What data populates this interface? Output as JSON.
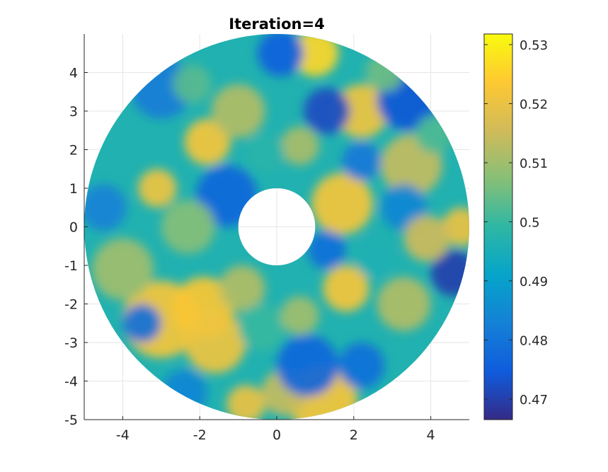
{
  "chart_data": {
    "type": "heatmap",
    "title": "Iteration=4",
    "xlabel": "",
    "ylabel": "",
    "xlim": [
      -5,
      5
    ],
    "ylim": [
      -5,
      5
    ],
    "xticks": [
      -4,
      -2,
      0,
      2,
      4
    ],
    "yticks": [
      4,
      3,
      2,
      1,
      0,
      -1,
      -2,
      -3,
      -4,
      -5
    ],
    "grid": true,
    "domain": {
      "shape": "annulus",
      "inner_radius": 1,
      "outer_radius": 5
    },
    "colorbar": {
      "clim": [
        0.4665,
        0.5318
      ],
      "ticks": [
        0.47,
        0.48,
        0.49,
        0.5,
        0.51,
        0.52,
        0.53
      ],
      "colormap": "parula",
      "colors": [
        "#352a87",
        "#0f5cdd",
        "#1481d6",
        "#06a4ca",
        "#2eb7a4",
        "#87bf77",
        "#d1bb59",
        "#fec832",
        "#f9fb0e"
      ]
    },
    "field_blobs": [
      {
        "x": -3.0,
        "y": -2.4,
        "r": 1.0,
        "v": 0.522
      },
      {
        "x": -1.9,
        "y": -2.1,
        "r": 0.8,
        "v": 0.523
      },
      {
        "x": -1.6,
        "y": -3.0,
        "r": 0.8,
        "v": 0.521
      },
      {
        "x": -0.9,
        "y": -1.6,
        "r": 0.6,
        "v": 0.512
      },
      {
        "x": 1.2,
        "y": -4.5,
        "r": 0.9,
        "v": 0.522
      },
      {
        "x": 0.2,
        "y": -4.3,
        "r": 0.6,
        "v": 0.514
      },
      {
        "x": -0.8,
        "y": -4.6,
        "r": 0.5,
        "v": 0.52
      },
      {
        "x": 1.8,
        "y": -1.6,
        "r": 0.6,
        "v": 0.522
      },
      {
        "x": 3.3,
        "y": -2.0,
        "r": 0.7,
        "v": 0.512
      },
      {
        "x": 1.7,
        "y": 0.6,
        "r": 0.8,
        "v": 0.522
      },
      {
        "x": 3.5,
        "y": 1.6,
        "r": 0.8,
        "v": 0.514
      },
      {
        "x": 4.8,
        "y": 0.0,
        "r": 0.5,
        "v": 0.52
      },
      {
        "x": 1.0,
        "y": 4.5,
        "r": 0.6,
        "v": 0.526
      },
      {
        "x": 2.2,
        "y": 3.0,
        "r": 0.7,
        "v": 0.521
      },
      {
        "x": -1.8,
        "y": 2.2,
        "r": 0.6,
        "v": 0.522
      },
      {
        "x": -3.1,
        "y": 1.0,
        "r": 0.5,
        "v": 0.521
      },
      {
        "x": -4.0,
        "y": -1.1,
        "r": 0.8,
        "v": 0.51
      },
      {
        "x": -1.0,
        "y": 3.0,
        "r": 0.7,
        "v": 0.512
      },
      {
        "x": 0.6,
        "y": 2.1,
        "r": 0.5,
        "v": 0.511
      },
      {
        "x": 0.1,
        "y": 4.5,
        "r": 0.6,
        "v": 0.476
      },
      {
        "x": 1.3,
        "y": 3.0,
        "r": 0.6,
        "v": 0.472
      },
      {
        "x": 3.4,
        "y": 3.3,
        "r": 0.8,
        "v": 0.474
      },
      {
        "x": 4.6,
        "y": -1.2,
        "r": 0.6,
        "v": 0.47
      },
      {
        "x": -1.3,
        "y": 0.8,
        "r": 0.8,
        "v": 0.477
      },
      {
        "x": 1.3,
        "y": -0.6,
        "r": 0.5,
        "v": 0.479
      },
      {
        "x": 0.8,
        "y": -3.6,
        "r": 0.8,
        "v": 0.477
      },
      {
        "x": 2.2,
        "y": -3.6,
        "r": 0.6,
        "v": 0.479
      },
      {
        "x": -3.5,
        "y": -2.5,
        "r": 0.5,
        "v": 0.479
      },
      {
        "x": -3.0,
        "y": 3.6,
        "r": 0.8,
        "v": 0.482
      },
      {
        "x": -4.5,
        "y": 0.5,
        "r": 0.6,
        "v": 0.483
      },
      {
        "x": -2.4,
        "y": -4.3,
        "r": 0.6,
        "v": 0.484
      },
      {
        "x": 3.3,
        "y": 0.5,
        "r": 0.6,
        "v": 0.484
      },
      {
        "x": 2.2,
        "y": 1.7,
        "r": 0.5,
        "v": 0.481
      },
      {
        "x": -0.4,
        "y": -2.6,
        "r": 0.6,
        "v": 0.5
      },
      {
        "x": 0.6,
        "y": -2.3,
        "r": 0.5,
        "v": 0.51
      },
      {
        "x": -2.3,
        "y": 0.0,
        "r": 0.7,
        "v": 0.507
      },
      {
        "x": -0.3,
        "y": 1.9,
        "r": 0.5,
        "v": 0.498
      },
      {
        "x": 2.8,
        "y": 4.0,
        "r": 0.5,
        "v": 0.505
      },
      {
        "x": 4.1,
        "y": 2.4,
        "r": 0.5,
        "v": 0.502
      },
      {
        "x": -2.2,
        "y": 3.7,
        "r": 0.5,
        "v": 0.503
      },
      {
        "x": 3.9,
        "y": -0.3,
        "r": 0.6,
        "v": 0.515
      },
      {
        "x": 2.5,
        "y": -0.8,
        "r": 0.5,
        "v": 0.496
      }
    ]
  }
}
